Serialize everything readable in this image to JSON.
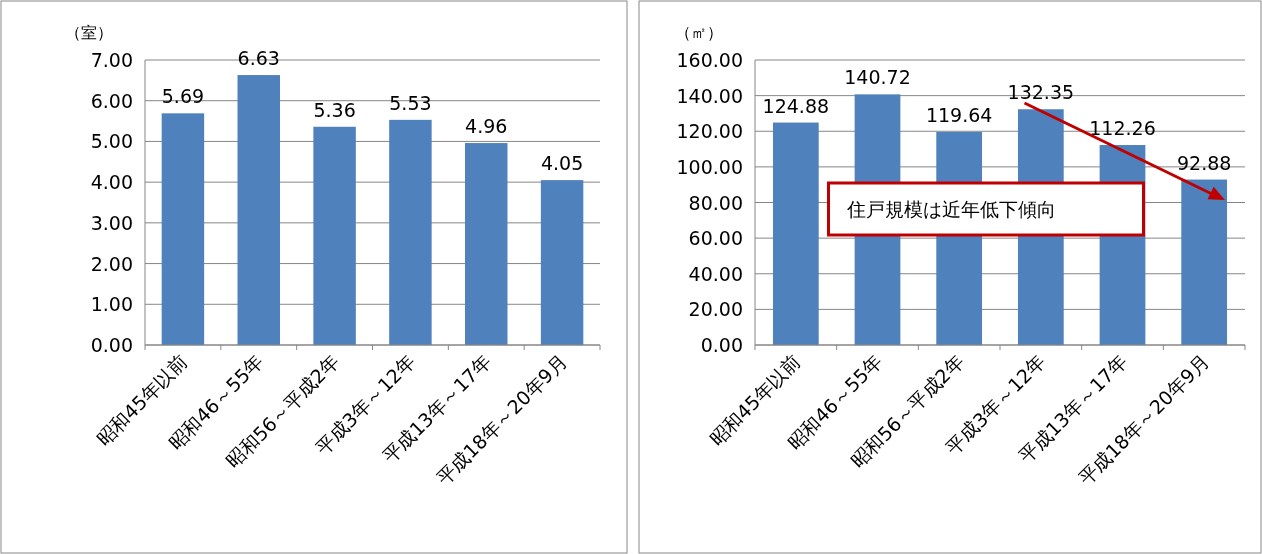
{
  "chart_data": [
    {
      "type": "bar",
      "ylabel": "（室）",
      "categories": [
        "昭和45年以前",
        "昭和46～55年",
        "昭和56～平成2年",
        "平成3年～12年",
        "平成13年～17年",
        "平成18年～20年9月"
      ],
      "values": [
        5.69,
        6.63,
        5.36,
        5.53,
        4.96,
        4.05
      ],
      "color": "#4f81bd",
      "data_labels": true,
      "grid": "y",
      "ylim": [
        0,
        7
      ],
      "yticks": [
        {
          "value": 0,
          "label": "0.00"
        },
        {
          "value": 1,
          "label": "1.00"
        },
        {
          "value": 2,
          "label": "2.00"
        },
        {
          "value": 3,
          "label": "3.00"
        },
        {
          "value": 4,
          "label": "4.00"
        },
        {
          "value": 5,
          "label": "5.00"
        },
        {
          "value": 6,
          "label": "6.00"
        },
        {
          "value": 7,
          "label": "7.00"
        }
      ]
    },
    {
      "type": "bar",
      "ylabel": "（㎡）",
      "categories": [
        "昭和45年以前",
        "昭和46～55年",
        "昭和56～平成2年",
        "平成3年～12年",
        "平成13年～17年",
        "平成18年～20年9月"
      ],
      "values": [
        124.88,
        140.72,
        119.64,
        132.35,
        112.26,
        92.88
      ],
      "color": "#4f81bd",
      "data_labels": true,
      "grid": "y",
      "ylim": [
        0,
        160
      ],
      "yticks": [
        {
          "value": 0,
          "label": "0.00"
        },
        {
          "value": 20,
          "label": "20.00"
        },
        {
          "value": 40,
          "label": "40.00"
        },
        {
          "value": 60,
          "label": "60.00"
        },
        {
          "value": 80,
          "label": "80.00"
        },
        {
          "value": 100,
          "label": "100.00"
        },
        {
          "value": 120,
          "label": "120.00"
        },
        {
          "value": 140,
          "label": "140.00"
        },
        {
          "value": 160,
          "label": "160.00"
        }
      ],
      "annotations": [
        "住戸規模は近年低下傾向"
      ]
    }
  ]
}
